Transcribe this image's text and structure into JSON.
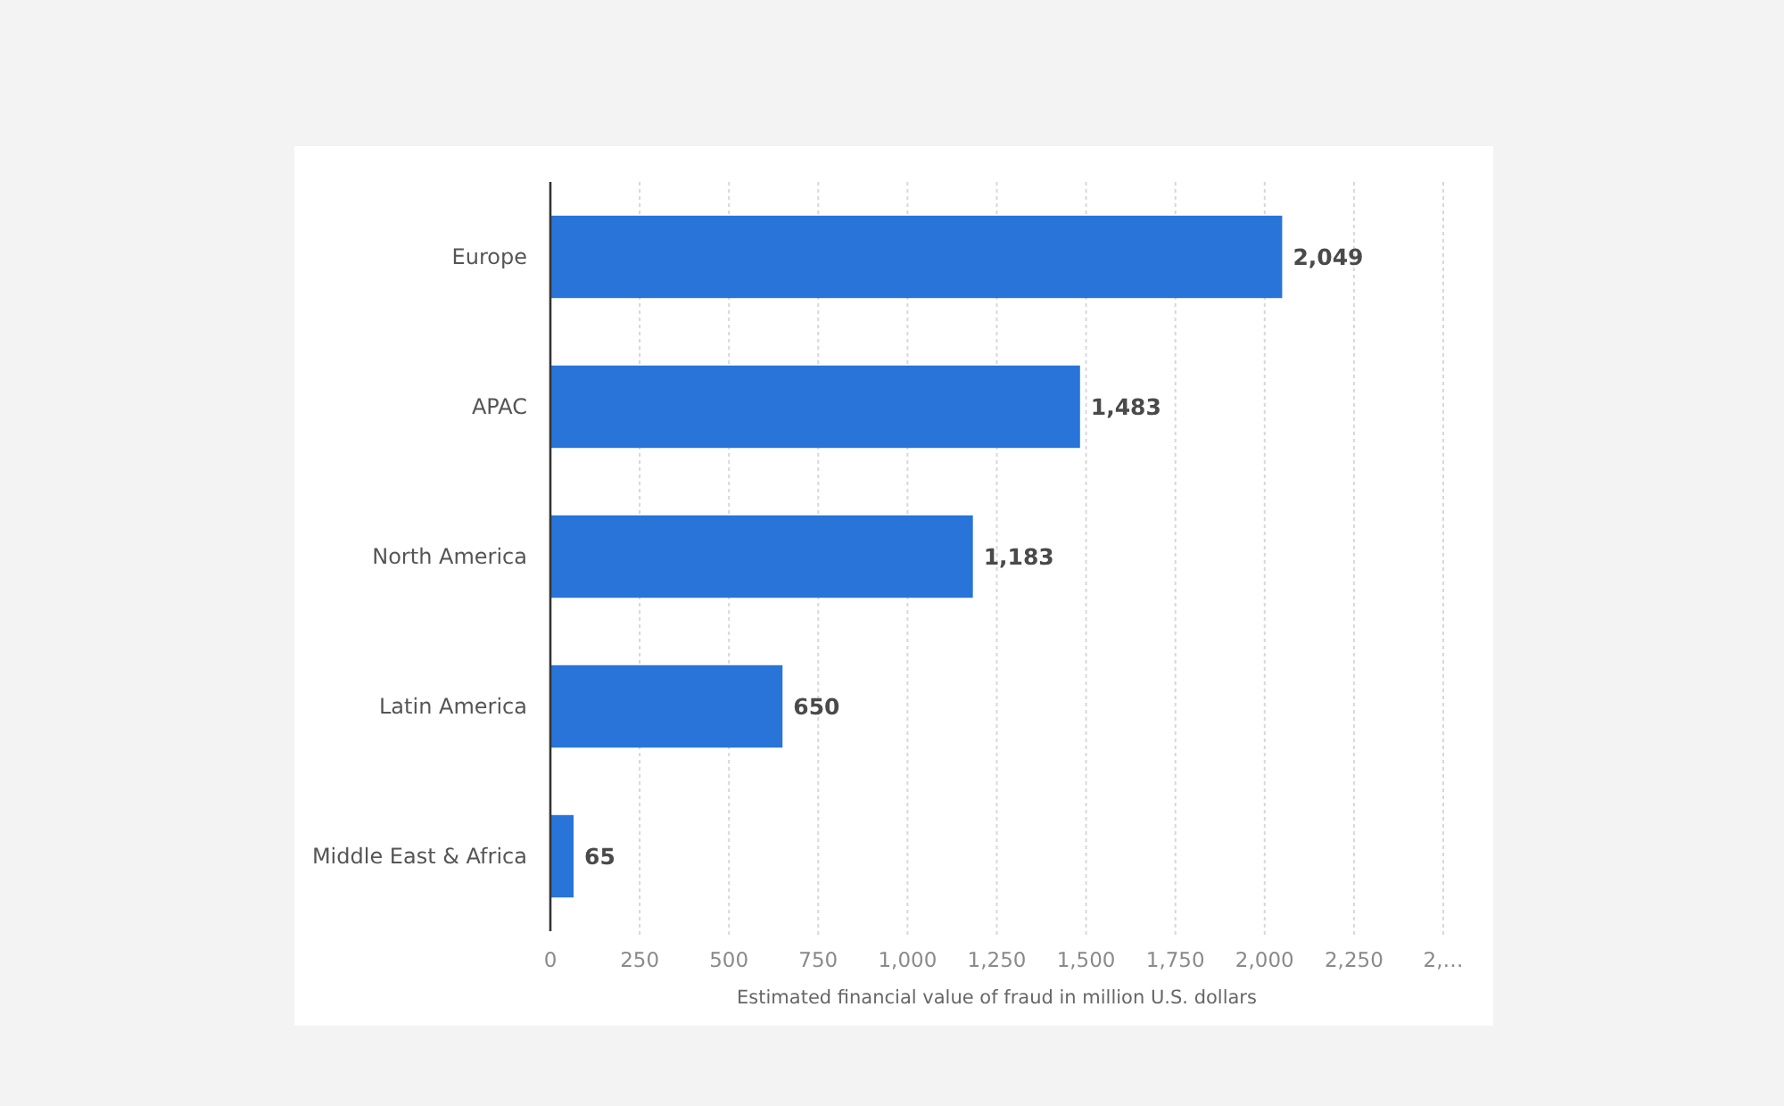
{
  "chart_data": {
    "type": "bar",
    "orientation": "horizontal",
    "categories": [
      "Europe",
      "APAC",
      "North America",
      "Latin America",
      "Middle East & Africa"
    ],
    "values": [
      2049,
      1483,
      1183,
      650,
      65
    ],
    "value_labels": [
      "2,049",
      "1,483",
      "1,183",
      "650",
      "65"
    ],
    "color": "#2874d9",
    "xlabel": "Estimated financial value of fraud in million U.S. dollars",
    "xlim": [
      0,
      2500
    ],
    "xticks": [
      0,
      250,
      500,
      750,
      {
        "value": 1000,
        "label": "1,000"
      },
      {
        "value": 1250,
        "label": "1,250"
      },
      {
        "value": 1500,
        "label": "1,500"
      },
      {
        "value": 1750,
        "label": "1,750"
      },
      {
        "value": 2000,
        "label": "2,000"
      },
      {
        "value": 2250,
        "label": "2,250"
      },
      {
        "value": 2500,
        "label": "2,…"
      }
    ],
    "grid": "x"
  }
}
